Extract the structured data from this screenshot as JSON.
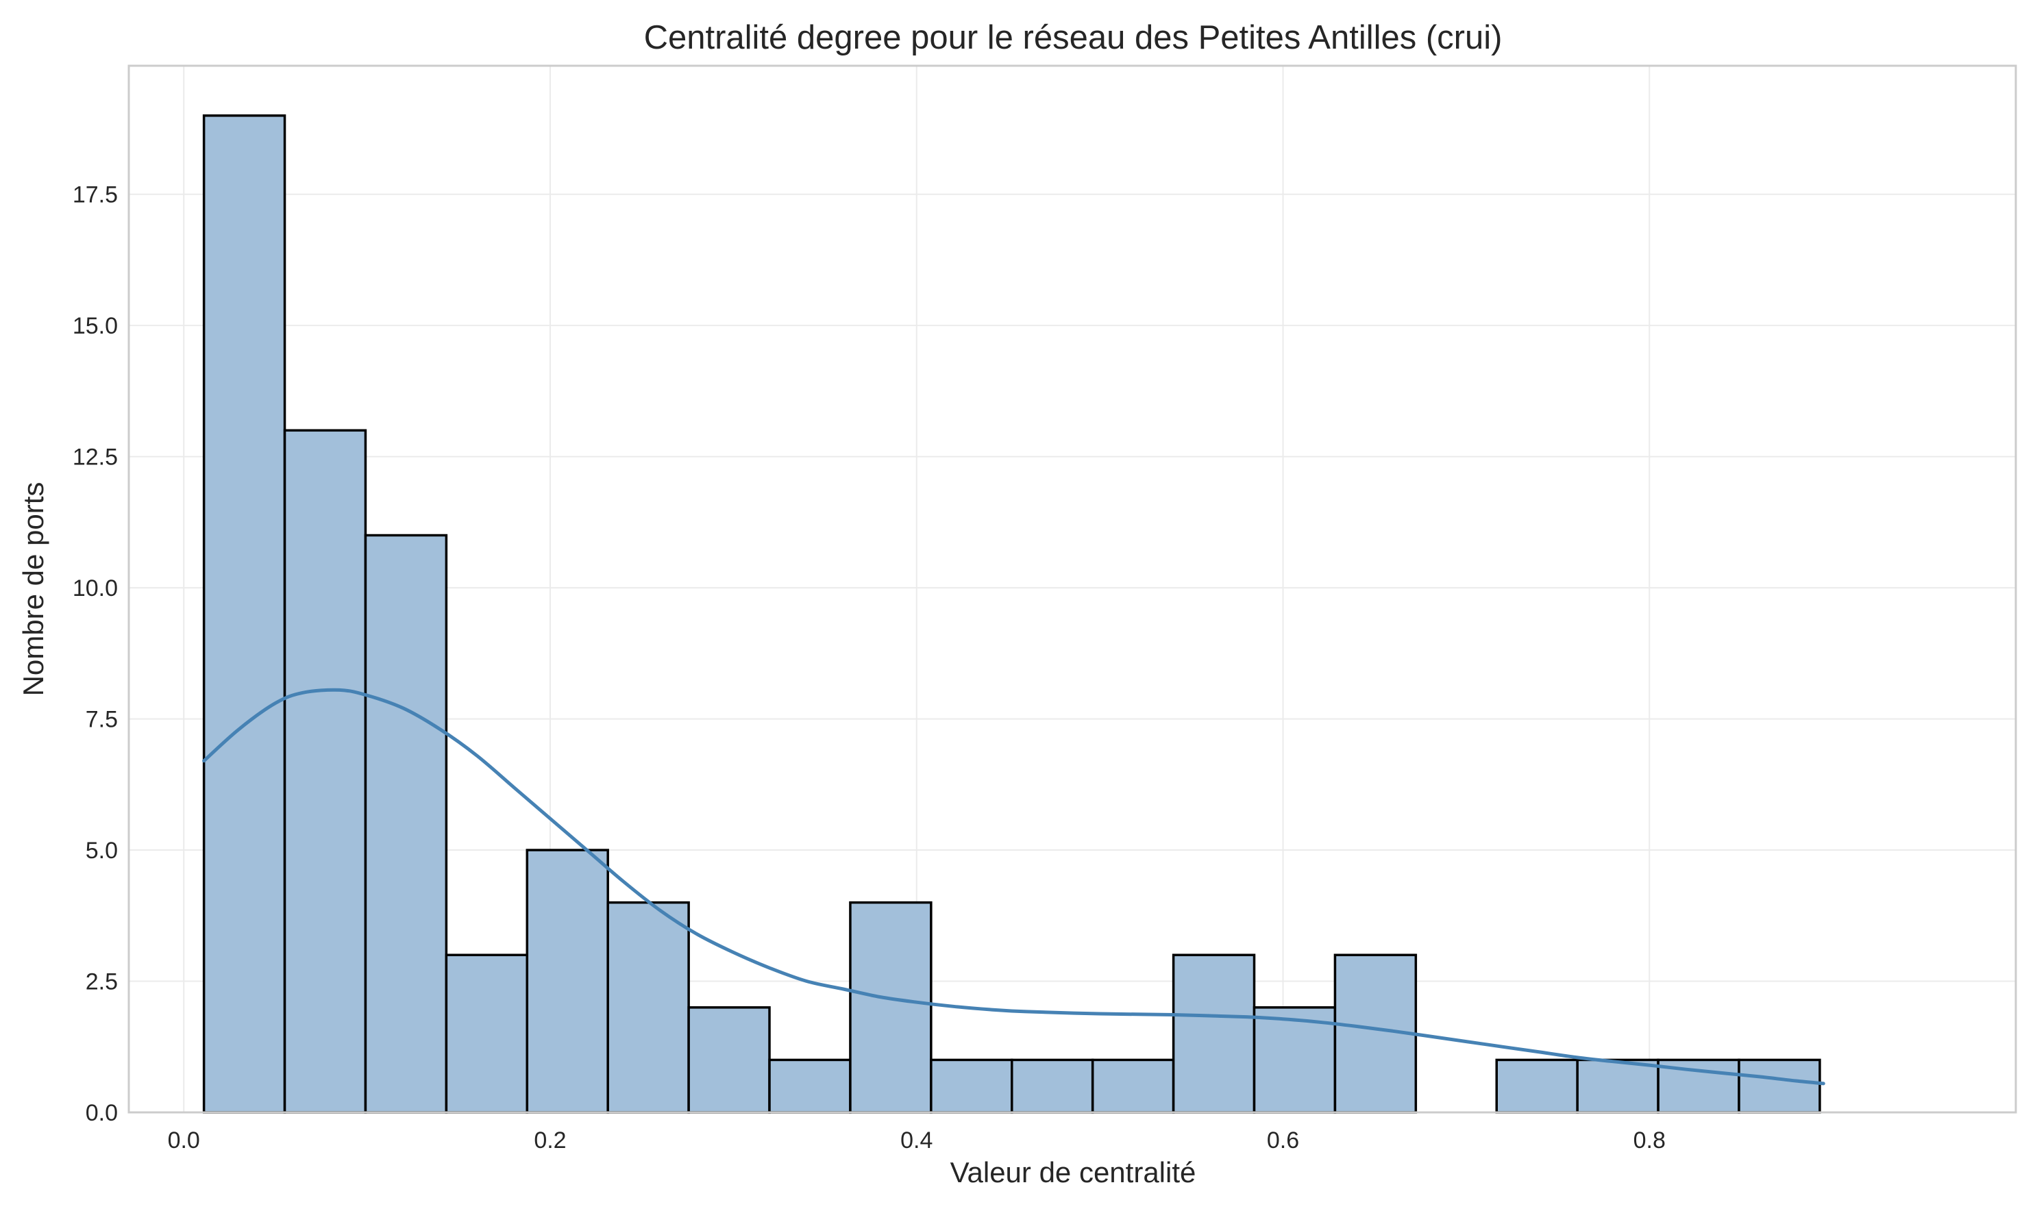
{
  "chart_data": {
    "type": "bar",
    "title": "Centralité degree pour le réseau des Petites Antilles (crui)",
    "xlabel": "Valeur de centralité",
    "ylabel": "Nombre de ports",
    "xlim": [
      -0.03,
      1.0
    ],
    "ylim": [
      0,
      19.95
    ],
    "x_ticks": [
      0.0,
      0.2,
      0.4,
      0.6,
      0.8
    ],
    "x_tick_labels": [
      "0.0",
      "0.2",
      "0.4",
      "0.6",
      "0.8"
    ],
    "y_ticks": [
      0.0,
      2.5,
      5.0,
      7.5,
      10.0,
      12.5,
      15.0,
      17.5
    ],
    "y_tick_labels": [
      "0.0",
      "2.5",
      "5.0",
      "7.5",
      "10.0",
      "12.5",
      "15.0",
      "17.5"
    ],
    "grid": true,
    "bin_start": 0.011,
    "bin_width": 0.0441,
    "values": [
      19,
      13,
      11,
      3,
      5,
      4,
      2,
      1,
      4,
      1,
      1,
      1,
      3,
      2,
      3,
      0,
      1,
      1,
      1,
      1
    ],
    "kde": {
      "x": [
        0.011,
        0.03,
        0.05,
        0.065,
        0.085,
        0.1,
        0.12,
        0.14,
        0.16,
        0.18,
        0.2,
        0.22,
        0.24,
        0.26,
        0.28,
        0.3,
        0.32,
        0.34,
        0.36,
        0.38,
        0.4,
        0.42,
        0.44,
        0.46,
        0.5,
        0.54,
        0.58,
        0.6,
        0.62,
        0.64,
        0.66,
        0.68,
        0.7,
        0.72,
        0.74,
        0.76,
        0.78,
        0.8,
        0.82,
        0.84,
        0.86,
        0.88,
        0.895
      ],
      "y": [
        6.7,
        7.3,
        7.8,
        8.0,
        8.05,
        7.95,
        7.7,
        7.3,
        6.8,
        6.2,
        5.6,
        5.0,
        4.4,
        3.85,
        3.4,
        3.05,
        2.75,
        2.5,
        2.35,
        2.2,
        2.1,
        2.02,
        1.96,
        1.92,
        1.88,
        1.86,
        1.82,
        1.78,
        1.72,
        1.64,
        1.55,
        1.45,
        1.35,
        1.25,
        1.15,
        1.05,
        0.97,
        0.9,
        0.82,
        0.75,
        0.68,
        0.6,
        0.55
      ]
    }
  }
}
